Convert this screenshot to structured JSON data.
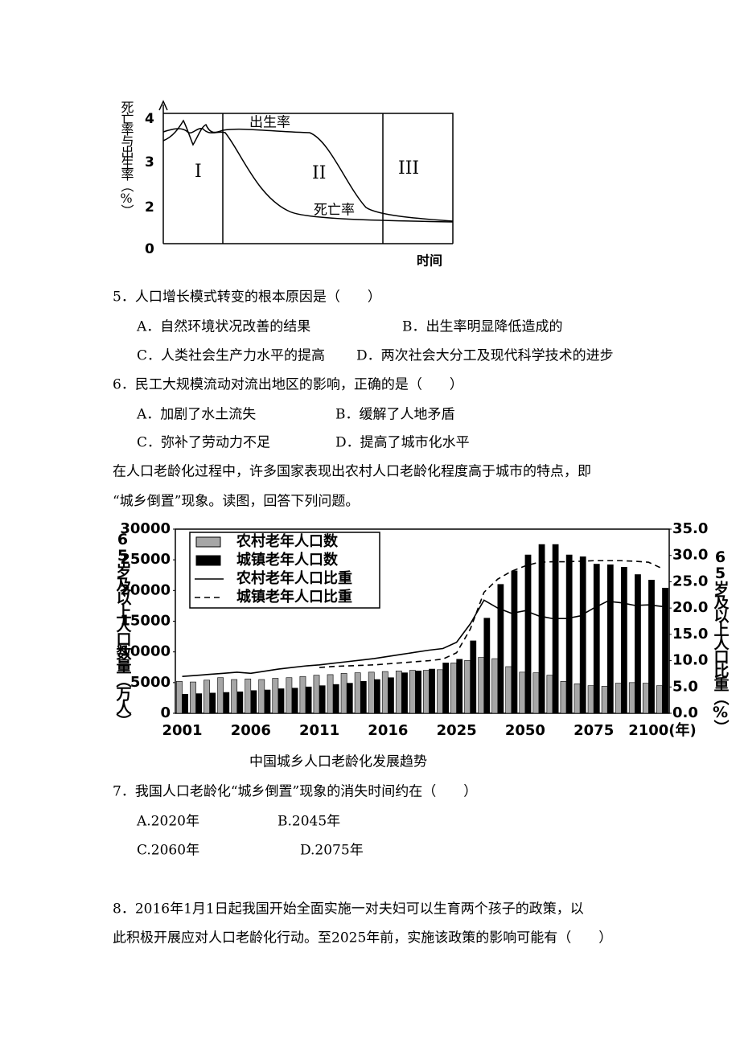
{
  "diagram": {
    "y_title": "死亡率与出生率（%）",
    "x_title": "时间",
    "yticks": [
      "4",
      "3",
      "2",
      "0"
    ],
    "birth_label": "出生率",
    "death_label": "死亡率",
    "stages": [
      "I",
      "II",
      "III"
    ]
  },
  "q5": {
    "stem": "5．人口增长模式转变的根本原因是（　　）",
    "options": [
      "A．自然环境状况改善的结果",
      "B．出生率明显降低造成的",
      "C．人类社会生产力水平的提高",
      "D．两次社会大分工及现代科学技术的进步"
    ]
  },
  "q6": {
    "stem": "6．民工大规模流动对流出地区的影响，正确的是（　　）",
    "options": [
      "A．加剧了水土流失",
      "B．缓解了人地矛盾",
      "C．弥补了劳动力不足",
      "D．提高了城市化水平"
    ]
  },
  "intro": [
    "在人口老龄化过程中，许多国家表现出农村人口老龄化程度高于城市的特点，即",
    "“城乡倒置”现象。读图，回答下列问题。"
  ],
  "chart_data": {
    "type": "bar",
    "title": "中国城乡人口老龄化发展趋势",
    "y_title": "65岁及以上人口数量（万人）",
    "y2_title": "65岁及以上人口比重（%）",
    "categories": [
      "2001",
      null,
      null,
      null,
      null,
      "2006",
      null,
      null,
      null,
      null,
      "2011",
      null,
      null,
      null,
      null,
      "2016",
      null,
      null,
      null,
      null,
      "2025",
      null,
      null,
      null,
      null,
      "2050",
      null,
      null,
      null,
      null,
      "2075",
      null,
      null,
      null,
      null,
      "2100(年)"
    ],
    "ylim": [
      0,
      30000
    ],
    "yticks": [
      0,
      5000,
      10000,
      15000,
      20000,
      25000,
      30000
    ],
    "y2lim": [
      0,
      35
    ],
    "y2ticks": [
      {
        "value": 0,
        "label": "0.0"
      },
      {
        "value": 5,
        "label": "5.0"
      },
      {
        "value": 10,
        "label": "10.0"
      },
      {
        "value": 15,
        "label": "15.0"
      },
      {
        "value": 20,
        "label": "20.0"
      },
      {
        "value": 25,
        "label": "25.0"
      },
      {
        "value": 30,
        "label": "30.0"
      },
      {
        "value": 35,
        "label": "35.0"
      }
    ],
    "series": [
      {
        "name": "农村老年人口数",
        "type": "bar",
        "color": "#a6a6a6",
        "values": [
          5200,
          5100,
          5400,
          5800,
          5500,
          5600,
          5500,
          5700,
          5800,
          6000,
          6200,
          6300,
          6500,
          6600,
          6700,
          6800,
          6900,
          7000,
          7000,
          7100,
          8200,
          8600,
          9100,
          8900,
          7600,
          6700,
          6600,
          6200,
          5200,
          4800,
          4500,
          4400,
          4900,
          5000,
          4900,
          4500
        ]
      },
      {
        "name": "城镇老年人口数",
        "type": "bar",
        "color": "#000000",
        "values": [
          3100,
          3200,
          3300,
          3400,
          3500,
          3700,
          3800,
          4000,
          4100,
          4300,
          4500,
          4700,
          4900,
          5200,
          5500,
          5800,
          6600,
          6900,
          7200,
          8200,
          8800,
          11800,
          15500,
          21000,
          23200,
          25800,
          27500,
          27500,
          25800,
          25500,
          24300,
          24200,
          23800,
          22600,
          21700,
          20400
        ]
      },
      {
        "name": "农村老年人口比重",
        "type": "line",
        "axis": "y2",
        "color": "#000000",
        "dashed": false,
        "values": [
          7.0,
          7.2,
          7.4,
          7.6,
          7.8,
          7.6,
          8.0,
          8.4,
          8.7,
          9.0,
          9.2,
          9.5,
          9.8,
          10.1,
          10.4,
          10.8,
          11.2,
          11.6,
          12.0,
          12.3,
          13.5,
          17,
          21.5,
          20,
          19,
          19.5,
          18.5,
          18,
          18,
          18.5,
          20,
          21.3,
          21,
          20.5,
          20.6,
          20.3
        ]
      },
      {
        "name": "城镇老年人口比重",
        "type": "line",
        "axis": "y2",
        "color": "#000000",
        "dashed": true,
        "values": [
          null,
          null,
          null,
          null,
          null,
          null,
          null,
          null,
          null,
          null,
          8.7,
          8.9,
          9.0,
          9.1,
          9.2,
          9.4,
          9.6,
          9.8,
          10.0,
          10.3,
          11.5,
          16,
          23,
          25.5,
          27,
          28,
          28.7,
          28.8,
          28.8,
          28.9,
          29,
          29,
          29,
          28.9,
          28.7,
          27.5
        ]
      }
    ]
  },
  "q7": {
    "stem": "7．我国人口老龄化“城乡倒置”现象的消失时间约在（　　）",
    "options": [
      "A.2020年",
      "B.2045年",
      "C.2060年",
      "D.2075年"
    ]
  },
  "q8": {
    "lines": [
      "8．2016年1月1日起我国开始全面实施一对夫妇可以生育两个孩子的政策，以",
      "此积极开展应对人口老龄化行动。至2025年前，实施该政策的影响可能有（　　）"
    ]
  }
}
